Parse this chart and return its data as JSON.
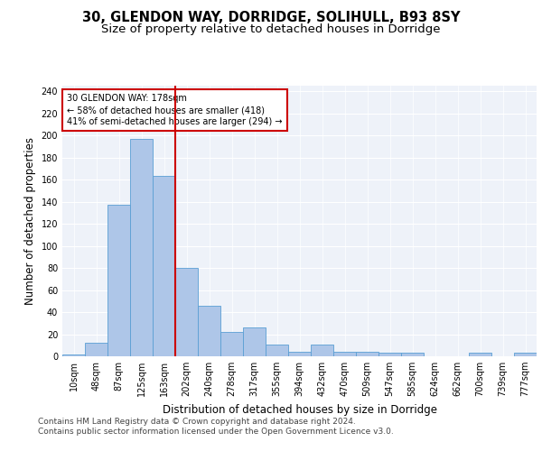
{
  "title1": "30, GLENDON WAY, DORRIDGE, SOLIHULL, B93 8SY",
  "title2": "Size of property relative to detached houses in Dorridge",
  "xlabel": "Distribution of detached houses by size in Dorridge",
  "ylabel": "Number of detached properties",
  "bar_labels": [
    "10sqm",
    "48sqm",
    "87sqm",
    "125sqm",
    "163sqm",
    "202sqm",
    "240sqm",
    "278sqm",
    "317sqm",
    "355sqm",
    "394sqm",
    "432sqm",
    "470sqm",
    "509sqm",
    "547sqm",
    "585sqm",
    "624sqm",
    "662sqm",
    "700sqm",
    "739sqm",
    "777sqm"
  ],
  "bar_values": [
    2,
    12,
    137,
    197,
    163,
    80,
    46,
    22,
    26,
    11,
    4,
    11,
    4,
    4,
    3,
    3,
    0,
    0,
    3,
    0,
    3
  ],
  "bar_color": "#aec6e8",
  "bar_edge_color": "#5a9fd4",
  "vline_x_idx": 4,
  "vline_color": "#cc0000",
  "annotation_text": "30 GLENDON WAY: 178sqm\n← 58% of detached houses are smaller (418)\n41% of semi-detached houses are larger (294) →",
  "annotation_box_color": "#cc0000",
  "footer1": "Contains HM Land Registry data © Crown copyright and database right 2024.",
  "footer2": "Contains public sector information licensed under the Open Government Licence v3.0.",
  "ylim": [
    0,
    245
  ],
  "yticks": [
    0,
    20,
    40,
    60,
    80,
    100,
    120,
    140,
    160,
    180,
    200,
    220,
    240
  ],
  "bg_color": "#eef2f9",
  "fig_bg_color": "#ffffff",
  "title1_fontsize": 10.5,
  "title2_fontsize": 9.5,
  "axis_label_fontsize": 8.5,
  "tick_fontsize": 7,
  "footer_fontsize": 6.5
}
